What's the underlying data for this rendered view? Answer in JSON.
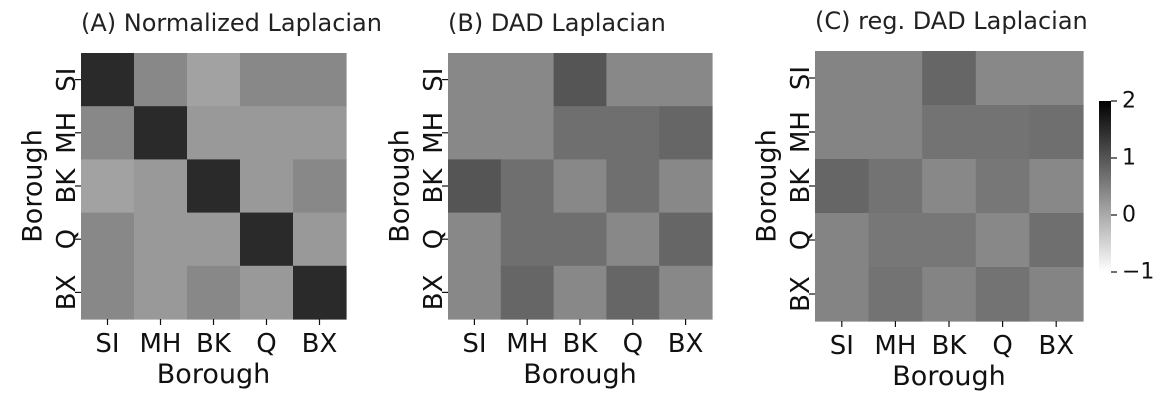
{
  "chart_data": [
    {
      "type": "heatmap",
      "title": "(A) Normalized Laplacian",
      "xlabel": "Borough",
      "ylabel": "Borough",
      "categories": [
        "SI",
        "MH",
        "BK",
        "Q",
        "BX"
      ],
      "values": [
        [
          1.5,
          0.4,
          0.1,
          0.4,
          0.4
        ],
        [
          0.4,
          1.5,
          0.2,
          0.2,
          0.2
        ],
        [
          0.1,
          0.2,
          1.5,
          0.2,
          0.4
        ],
        [
          0.4,
          0.2,
          0.2,
          1.5,
          0.2
        ],
        [
          0.4,
          0.2,
          0.4,
          0.2,
          1.5
        ]
      ]
    },
    {
      "type": "heatmap",
      "title": "(B) DAD Laplacian",
      "xlabel": "Borough",
      "ylabel": "Borough",
      "categories": [
        "SI",
        "MH",
        "BK",
        "Q",
        "BX"
      ],
      "values": [
        [
          0.4,
          0.4,
          1.0,
          0.4,
          0.4
        ],
        [
          0.4,
          0.4,
          0.7,
          0.7,
          0.8
        ],
        [
          1.0,
          0.7,
          0.4,
          0.7,
          0.4
        ],
        [
          0.4,
          0.7,
          0.7,
          0.4,
          0.8
        ],
        [
          0.4,
          0.8,
          0.4,
          0.8,
          0.4
        ]
      ]
    },
    {
      "type": "heatmap",
      "title": "(C) reg. DAD Laplacian",
      "xlabel": "Borough",
      "ylabel": "Borough",
      "categories": [
        "SI",
        "MH",
        "BK",
        "Q",
        "BX"
      ],
      "values": [
        [
          0.45,
          0.45,
          0.8,
          0.4,
          0.4
        ],
        [
          0.45,
          0.45,
          0.65,
          0.65,
          0.7
        ],
        [
          0.8,
          0.65,
          0.4,
          0.6,
          0.4
        ],
        [
          0.45,
          0.6,
          0.6,
          0.4,
          0.7
        ],
        [
          0.45,
          0.65,
          0.45,
          0.65,
          0.45
        ]
      ]
    }
  ],
  "colorbar": {
    "ticks": [
      "2",
      "1",
      "0",
      "−1"
    ],
    "tick_values": [
      2,
      1,
      0,
      -1
    ],
    "range": [
      -1,
      2
    ],
    "cmap": "Greys"
  },
  "colors": {
    "low": "#ffffff",
    "high": "#000000"
  }
}
